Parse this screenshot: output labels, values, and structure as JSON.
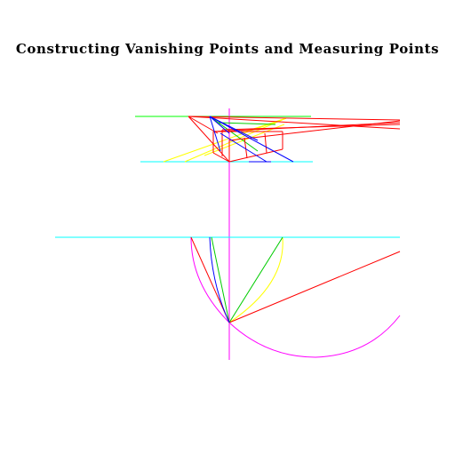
{
  "title": "Constructing Vanishing Points and Measuring Points",
  "colors": {
    "background": "#ffffff",
    "title": "#000000",
    "horizon": "#00ff00",
    "ground_line": "#00ffff",
    "center_axis": "#ff00ff",
    "arc": "#ff00ff",
    "red": "#ff0000",
    "blue": "#0000ff",
    "green": "#00cc00",
    "yellow": "#ffff00"
  }
}
